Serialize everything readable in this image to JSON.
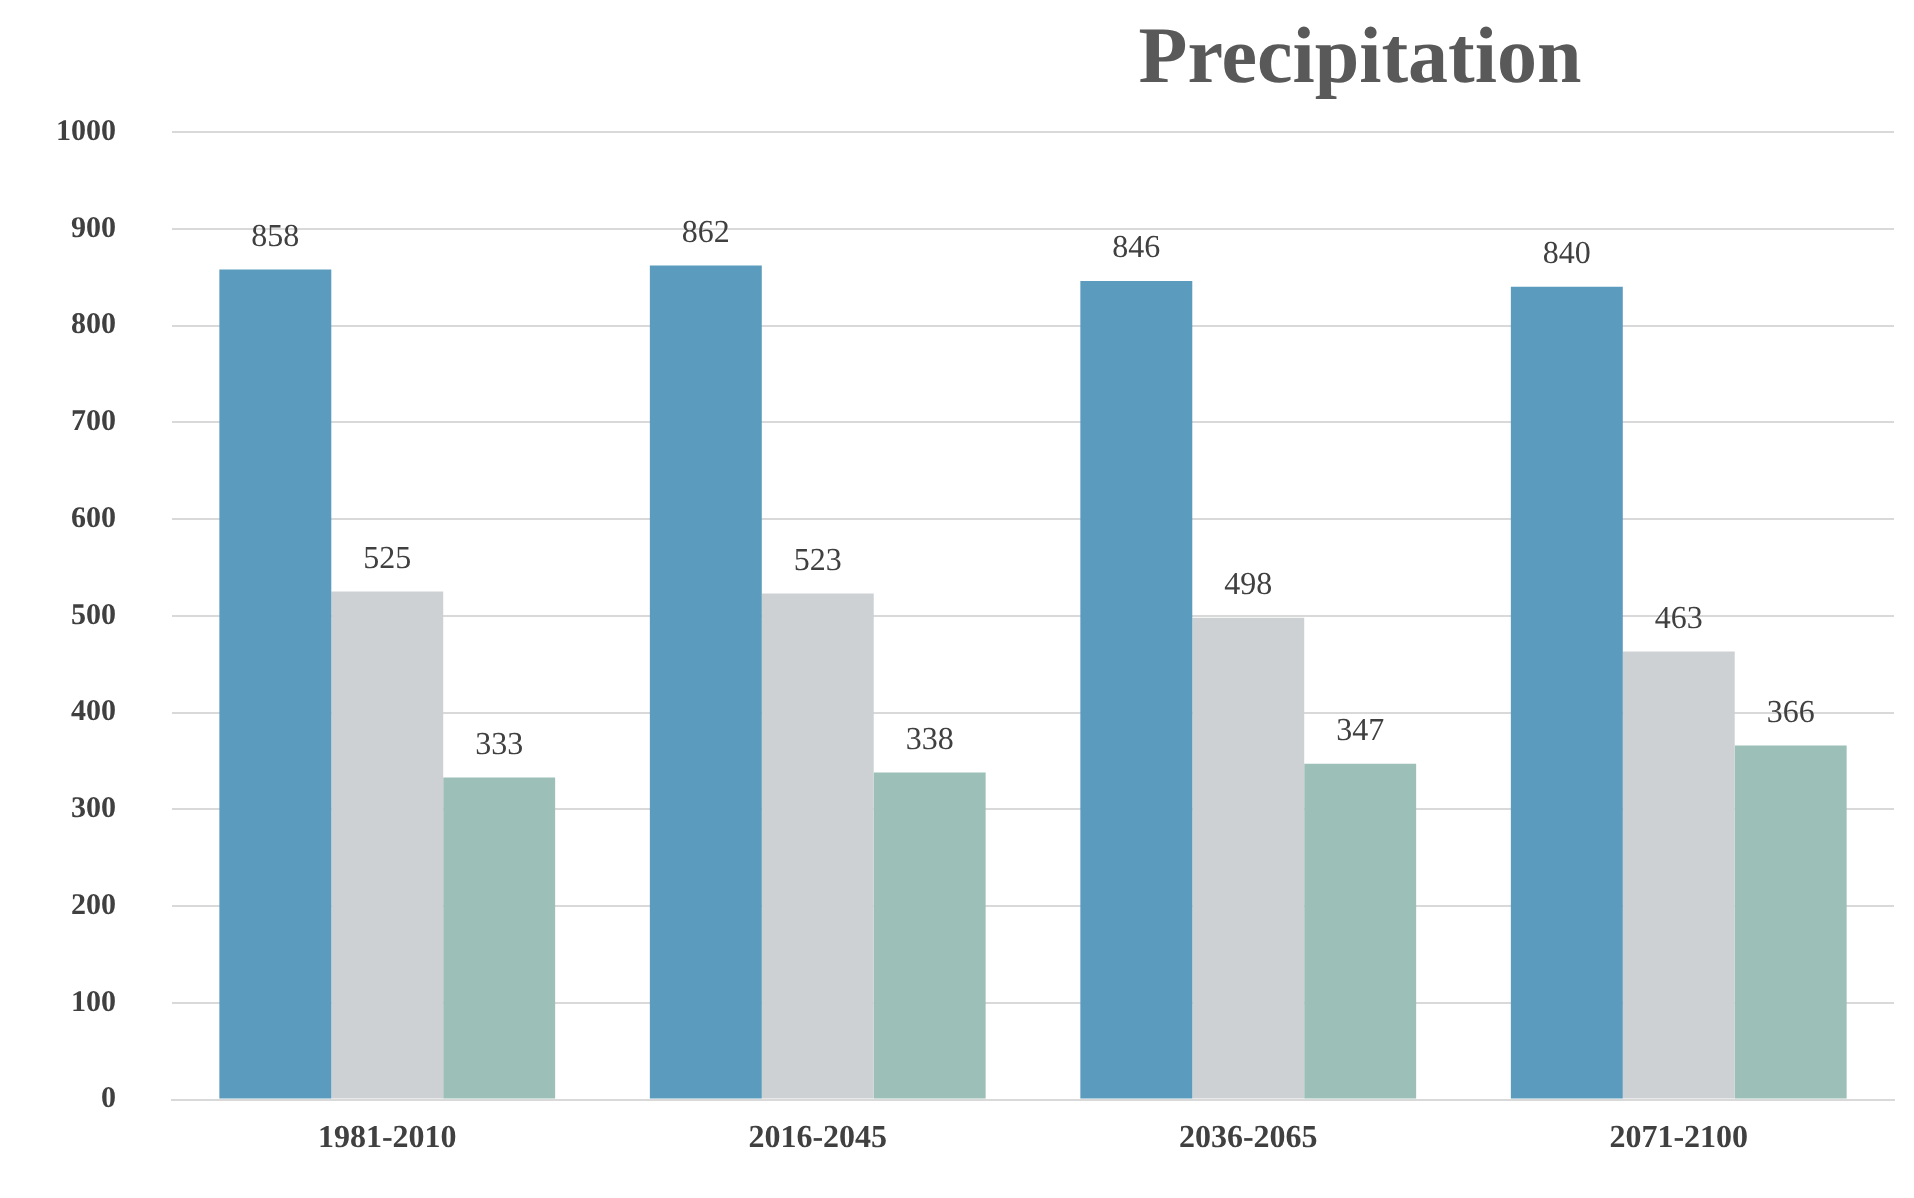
{
  "chart_data": {
    "type": "bar",
    "title": "Precipitation",
    "categories": [
      "1981-2010",
      "2016-2045",
      "2036-2065",
      "2071-2100"
    ],
    "series": [
      {
        "color": "#5b9bbd",
        "values": [
          858,
          862,
          846,
          840
        ]
      },
      {
        "color": "#cdd1d4",
        "values": [
          525,
          523,
          498,
          463
        ]
      },
      {
        "color": "#9cbfb8",
        "values": [
          333,
          338,
          347,
          366
        ]
      }
    ],
    "ylim": [
      0,
      1000
    ],
    "yticks": [
      0,
      100,
      200,
      300,
      400,
      500,
      600,
      700,
      800,
      900,
      1000
    ],
    "grid": "y",
    "data_labels": true,
    "legend": false
  }
}
